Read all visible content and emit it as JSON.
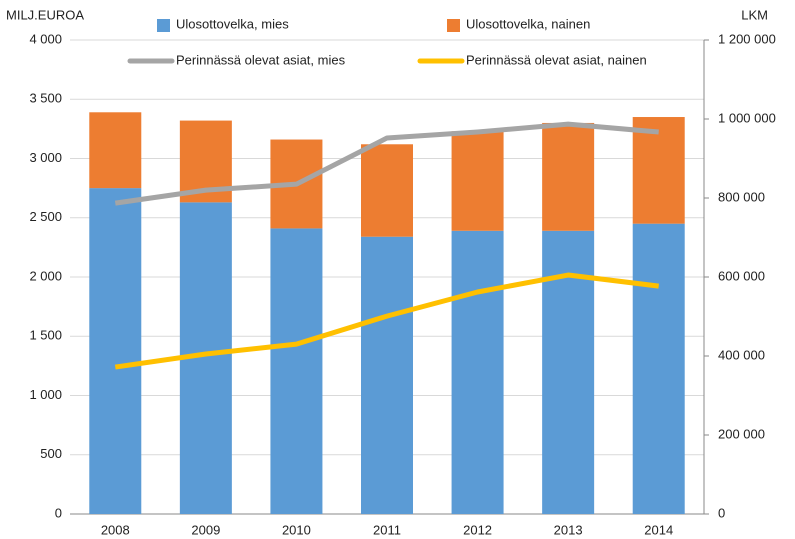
{
  "chart_data": {
    "type": "bar_line",
    "y_label": "MILJ.EUROA",
    "y2_label": "LKM",
    "categories": [
      "2008",
      "2009",
      "2010",
      "2011",
      "2012",
      "2013",
      "2014"
    ],
    "series": [
      {
        "name": "Ulosottovelka, mies",
        "color": "#5b9bd5",
        "kind": "bar",
        "values": [
          2750,
          2630,
          2410,
          2340,
          2390,
          2390,
          2450
        ]
      },
      {
        "name": "Ulosottovelka, nainen",
        "color": "#ed7d31",
        "kind": "bar",
        "values": [
          640,
          690,
          750,
          780,
          840,
          910,
          900
        ]
      },
      {
        "name": "Perinnässä olevat asiat, mies",
        "color": "#a5a5a5",
        "kind": "line",
        "axis": "y2",
        "values": [
          787000,
          820000,
          835000,
          952000,
          967000,
          987000,
          967000
        ]
      },
      {
        "name": "Perinnässä olevat asiat, nainen",
        "color": "#ffc000",
        "kind": "line",
        "axis": "y2",
        "values": [
          372000,
          405000,
          430000,
          501000,
          562000,
          605000,
          577000
        ]
      }
    ],
    "stacked": true,
    "ylim": [
      0,
      4000
    ],
    "yticks": [
      0,
      500,
      {
        "value": 1000,
        "label": "1 000"
      },
      {
        "value": 1500,
        "label": "1 500"
      },
      {
        "value": 2000,
        "label": "2 000"
      },
      {
        "value": 2500,
        "label": "2 500"
      },
      {
        "value": 3000,
        "label": "3 000"
      },
      {
        "value": 3500,
        "label": "3 500"
      },
      {
        "value": 4000,
        "label": "4 000"
      }
    ],
    "y2lim": [
      0,
      1200000
    ],
    "y2ticks": [
      0,
      {
        "value": 200000,
        "label": "200 000"
      },
      {
        "value": 400000,
        "label": "400 000"
      },
      {
        "value": 600000,
        "label": "600 000"
      },
      {
        "value": 800000,
        "label": "800 000"
      },
      {
        "value": 1000000,
        "label": "1 000 000"
      },
      {
        "value": 1200000,
        "label": "1 200 000"
      }
    ],
    "grid": true
  }
}
